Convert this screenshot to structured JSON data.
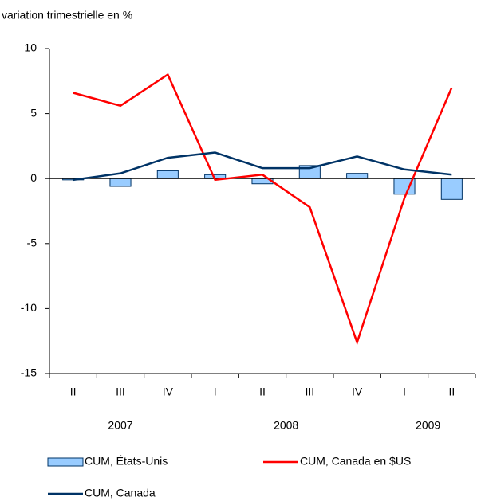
{
  "chart_data": {
    "type": "combo",
    "title": "variation trimestrielle en %",
    "category_groups": [
      {
        "name": "2007",
        "categories": [
          "II",
          "III",
          "IV"
        ]
      },
      {
        "name": "2008",
        "categories": [
          "I",
          "II",
          "III",
          "IV"
        ]
      },
      {
        "name": "2009",
        "categories": [
          "I",
          "II"
        ]
      }
    ],
    "series": [
      {
        "name": "CUM, États-Unis",
        "type": "bar",
        "color": "#99ccff",
        "values": [
          -0.1,
          -0.6,
          0.6,
          0.3,
          -0.4,
          1.0,
          0.4,
          -1.2,
          -1.6
        ]
      },
      {
        "name": "CUM, Canada en $US",
        "type": "line",
        "color": "#ff0000",
        "values": [
          6.6,
          5.6,
          8.0,
          -0.1,
          0.3,
          -2.2,
          -12.6,
          -1.5,
          7.0
        ]
      },
      {
        "name": "CUM, Canada",
        "type": "line",
        "color": "#003366",
        "values": [
          -0.1,
          0.4,
          1.6,
          2.0,
          0.8,
          0.8,
          1.7,
          0.7,
          0.3
        ]
      }
    ],
    "ylim": [
      -15,
      10
    ],
    "yticks": [
      -15,
      -10,
      -5,
      0,
      5,
      10
    ],
    "grid": false
  }
}
